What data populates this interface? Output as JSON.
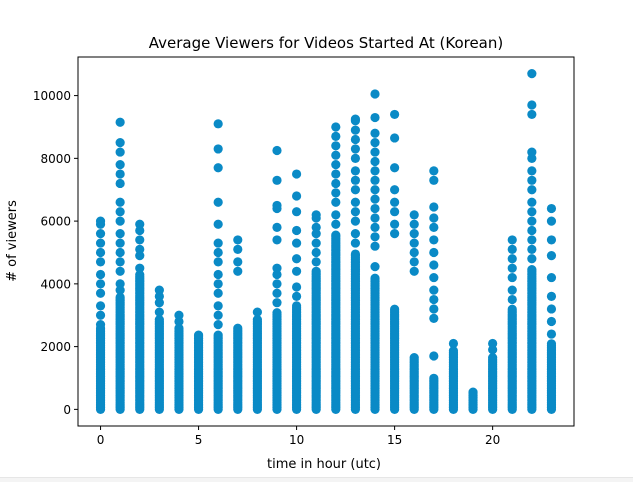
{
  "chart_data": {
    "type": "scatter",
    "title": "Average Viewers for Videos Started At (Korean)",
    "xlabel": "time in hour (utc)",
    "ylabel": "# of viewers",
    "xlim": [
      -1.15,
      24.15
    ],
    "ylim": [
      -530,
      11230
    ],
    "x_ticks": [
      0,
      5,
      10,
      15,
      20
    ],
    "y_ticks": [
      0,
      2000,
      4000,
      6000,
      8000,
      10000
    ],
    "grid": false,
    "marker_color": "#0a8ac6",
    "series": [
      {
        "columns": [
          {
            "x": 0,
            "dense_max": 2600,
            "outliers": [
              2700,
              3000,
              3300,
              3700,
              4000,
              4300,
              4700,
              5000,
              5300,
              5600,
              5900,
              6000
            ]
          },
          {
            "x": 1,
            "dense_max": 3600,
            "outliers": [
              3800,
              4000,
              4400,
              4700,
              5000,
              5300,
              5600,
              6000,
              6300,
              6600,
              7200,
              7500,
              7800,
              8200,
              8500,
              9150
            ]
          },
          {
            "x": 2,
            "dense_max": 4300,
            "outliers": [
              4500,
              4900,
              5100,
              5400,
              5700,
              5900
            ]
          },
          {
            "x": 3,
            "dense_max": 2900,
            "outliers": [
              3100,
              3400,
              3600,
              3800
            ]
          },
          {
            "x": 4,
            "dense_max": 2600,
            "outliers": [
              2800,
              3000
            ]
          },
          {
            "x": 5,
            "dense_max": 2400,
            "outliers": []
          },
          {
            "x": 6,
            "dense_max": 2400,
            "outliers": [
              2700,
              3000,
              3300,
              3700,
              4000,
              4300,
              4700,
              5000,
              5300,
              5900,
              6600,
              7700,
              8300,
              9100
            ]
          },
          {
            "x": 7,
            "dense_max": 2600,
            "outliers": [
              4400,
              4700,
              5100,
              5400
            ]
          },
          {
            "x": 8,
            "dense_max": 2900,
            "outliers": [
              3100
            ]
          },
          {
            "x": 9,
            "dense_max": 3100,
            "outliers": [
              3400,
              3700,
              4000,
              4300,
              4500,
              5400,
              5800,
              6400,
              6500,
              7300,
              8250
            ]
          },
          {
            "x": 10,
            "dense_max": 3300,
            "outliers": [
              3600,
              3900,
              4400,
              4800,
              5300,
              5700,
              6300,
              6800,
              7500
            ]
          },
          {
            "x": 11,
            "dense_max": 4400,
            "outliers": [
              4700,
              5000,
              5300,
              5600,
              5800,
              6100,
              6200
            ]
          },
          {
            "x": 12,
            "dense_max": 5600,
            "outliers": [
              5900,
              6200,
              6600,
              6900,
              7200,
              7500,
              7800,
              8100,
              8400,
              8700,
              9000
            ]
          },
          {
            "x": 13,
            "dense_max": 5000,
            "outliers": [
              5300,
              5600,
              6000,
              6300,
              6600,
              7000,
              7300,
              7600,
              8000,
              8300,
              8600,
              8900,
              9200,
              9250
            ]
          },
          {
            "x": 14,
            "dense_max": 4200,
            "outliers": [
              4550,
              5200,
              5500,
              5800,
              6100,
              6400,
              6700,
              7000,
              7300,
              7600,
              7900,
              8200,
              8500,
              8800,
              9300,
              10050
            ]
          },
          {
            "x": 15,
            "dense_max": 3200,
            "outliers": [
              5600,
              5900,
              6300,
              6600,
              7000,
              7700,
              8650,
              9400
            ]
          },
          {
            "x": 16,
            "dense_max": 1650,
            "outliers": [
              4400,
              4700,
              5000,
              5300,
              5600,
              5900,
              6200
            ]
          },
          {
            "x": 17,
            "dense_max": 1000,
            "outliers": [
              1700,
              2900,
              3200,
              3500,
              3800,
              4200,
              4600,
              5000,
              5400,
              5800,
              6100,
              6450,
              7300,
              7600
            ]
          },
          {
            "x": 18,
            "dense_max": 1900,
            "outliers": [
              2100
            ]
          },
          {
            "x": 19,
            "dense_max": 600,
            "outliers": []
          },
          {
            "x": 20,
            "dense_max": 1700,
            "outliers": [
              1900,
              2100
            ]
          },
          {
            "x": 21,
            "dense_max": 3200,
            "outliers": [
              3500,
              3800,
              4200,
              4500,
              4800,
              5100,
              5400
            ]
          },
          {
            "x": 22,
            "dense_max": 4500,
            "outliers": [
              4800,
              5100,
              5400,
              5700,
              6000,
              6300,
              6600,
              7000,
              7300,
              7600,
              8000,
              8200,
              9400,
              9700,
              10700
            ]
          },
          {
            "x": 23,
            "dense_max": 2100,
            "outliers": [
              2400,
              2800,
              3200,
              3600,
              4200,
              4900,
              5400,
              6000,
              6400
            ]
          }
        ]
      }
    ]
  }
}
